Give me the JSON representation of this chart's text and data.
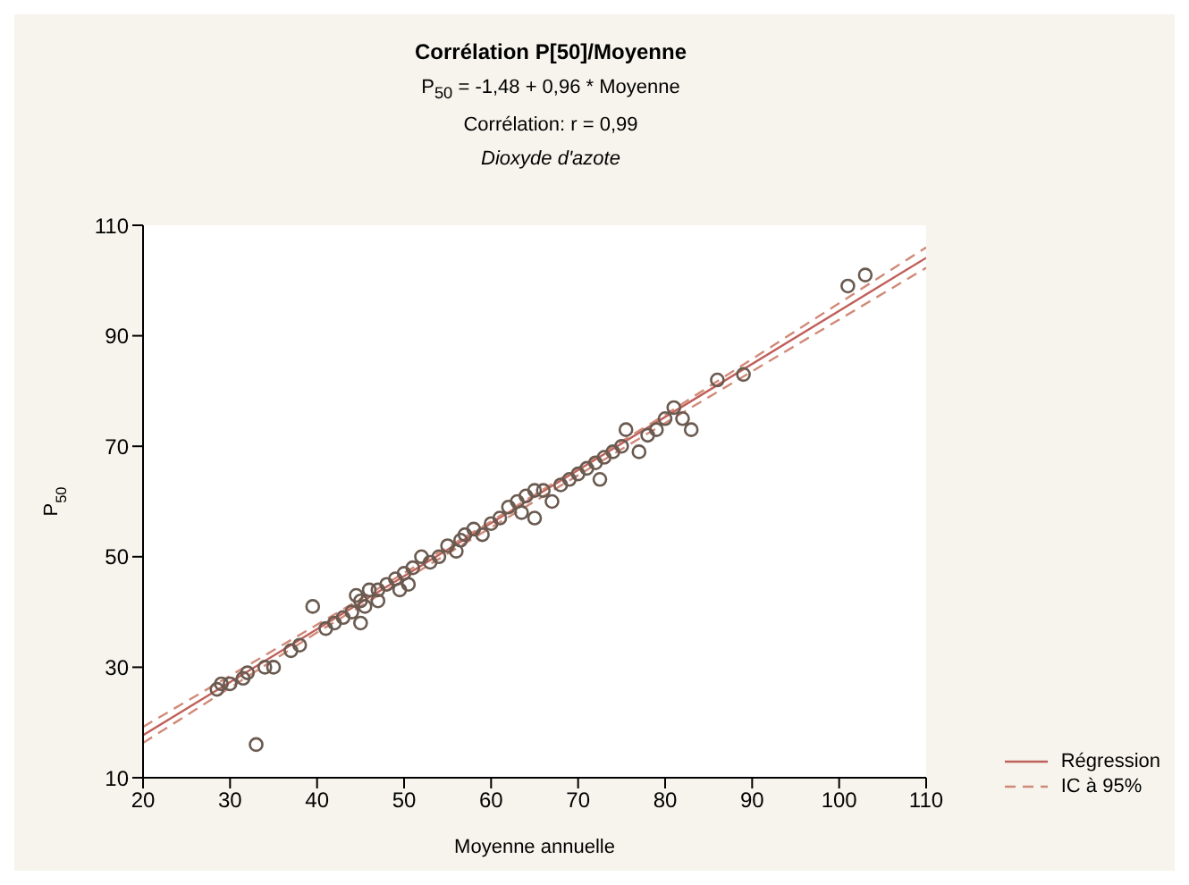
{
  "chart_data": {
    "type": "scatter",
    "title": "Corrélation P[50]/Moyenne",
    "subtitle": "P$_{50}$ = -1,48 + 0,96 * Moyenne",
    "annotations": [
      "Corrélation: r = 0,99",
      "Dioxyde d'azote"
    ],
    "xlabel": "Moyenne annuelle",
    "ylabel": "P$_{50}$",
    "xlim": [
      20,
      110
    ],
    "xticks": [
      20,
      30,
      40,
      50,
      60,
      70,
      80,
      90,
      100,
      110
    ],
    "ylim": [
      10,
      110
    ],
    "yticks": [
      10,
      30,
      50,
      70,
      90,
      110
    ],
    "grid": false,
    "legend": "bottom right",
    "series": [
      {
        "color": "#6a5a50",
        "marker": "circle",
        "x": [
          28.5,
          29,
          30,
          31.5,
          32,
          33,
          34,
          35,
          37,
          38,
          39.5,
          41,
          42,
          43,
          44,
          44.5,
          45,
          45,
          45.5,
          46,
          47,
          47,
          48,
          49,
          49.5,
          50,
          50.5,
          51,
          52,
          53,
          54,
          55,
          56,
          56.5,
          57,
          58,
          59,
          60,
          61,
          62,
          63,
          63.5,
          64,
          65,
          65,
          66,
          67,
          68,
          69,
          70,
          71,
          72,
          72.5,
          73,
          74,
          75,
          75.5,
          77,
          78,
          79,
          80,
          81,
          82,
          83,
          86,
          89,
          101,
          103
        ],
        "values": [
          26,
          27,
          27,
          28,
          29,
          16,
          30,
          30,
          33,
          34,
          41,
          37,
          38,
          39,
          40,
          43,
          38,
          42,
          41,
          44,
          44,
          42,
          45,
          46,
          44,
          47,
          45,
          48,
          50,
          49,
          50,
          52,
          51,
          53,
          54,
          55,
          54,
          56,
          57,
          59,
          60,
          58,
          61,
          62,
          57,
          62,
          60,
          63,
          64,
          65,
          66,
          67,
          64,
          68,
          69,
          70,
          73,
          69,
          72,
          73,
          75,
          77,
          75,
          73,
          82,
          83,
          99,
          101
        ]
      },
      {
        "type": "line",
        "name": "Régression",
        "color": "#c0605a",
        "line_style": "solid",
        "marker": "none",
        "x": [
          20,
          110
        ],
        "values": [
          17.7,
          104.1
        ]
      },
      {
        "type": "line",
        "name": "IC à 95%",
        "color": "#d08a78",
        "line_style": "dashed",
        "marker": "none",
        "x": [
          20,
          40,
          60,
          80,
          110
        ],
        "values": [
          19.2,
          37.7,
          56.4,
          75.7,
          106
        ]
      },
      {
        "type": "line",
        "color": "#d08a78",
        "line_style": "dashed",
        "marker": "none",
        "x": [
          20,
          40,
          60,
          80,
          110
        ],
        "values": [
          16.3,
          36.3,
          55.3,
          74.2,
          102.3
        ]
      }
    ]
  }
}
